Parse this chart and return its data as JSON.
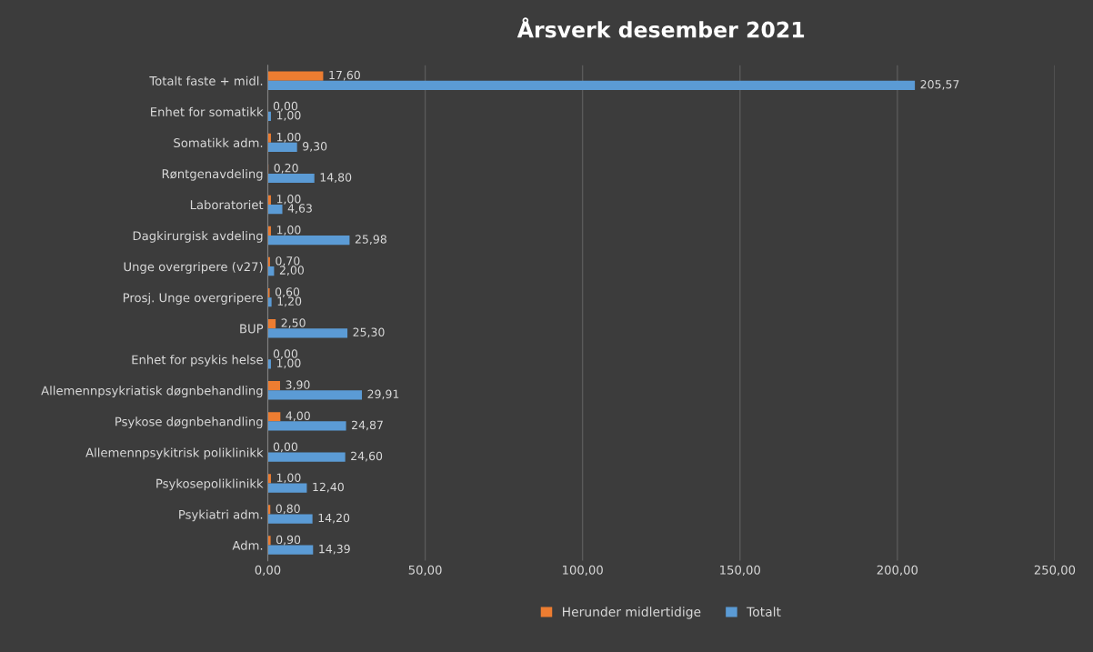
{
  "chart_data": {
    "type": "bar",
    "orientation": "horizontal",
    "title": "Årsverk desember 2021",
    "categories": [
      "Totalt faste + midl.",
      "Enhet for somatikk",
      "Somatikk adm.",
      "Røntgenavdeling",
      "Laboratoriet",
      "Dagkirurgisk avdeling",
      "Unge overgripere (v27)",
      "Prosj. Unge overgripere",
      "BUP",
      "Enhet for psykis helse",
      "Allemennpsykriatisk døgnbehandling",
      "Psykose døgnbehandling",
      "Allemennpsykitrisk poliklinikk",
      "Psykosepoliklinikk",
      "Psykiatri adm.",
      "Adm."
    ],
    "series": [
      {
        "name": "Herunder midlertidige",
        "color": "#ed7d31",
        "values": [
          17.6,
          0.0,
          1.0,
          0.2,
          1.0,
          1.0,
          0.7,
          0.6,
          2.5,
          0.0,
          3.9,
          4.0,
          0.0,
          1.0,
          0.8,
          0.9
        ],
        "value_labels": [
          "17,60",
          "0,00",
          "1,00",
          "0,20",
          "1,00",
          "1,00",
          "0,70",
          "0,60",
          "2,50",
          "0,00",
          "3,90",
          "4,00",
          "0,00",
          "1,00",
          "0,80",
          "0,90"
        ]
      },
      {
        "name": "Totalt",
        "color": "#5b9bd5",
        "values": [
          205.57,
          1.0,
          9.3,
          14.8,
          4.63,
          25.98,
          2.0,
          1.2,
          25.3,
          1.0,
          29.91,
          24.87,
          24.6,
          12.4,
          14.2,
          14.39
        ],
        "value_labels": [
          "205,57",
          "1,00",
          "9,30",
          "14,80",
          "4,63",
          "25,98",
          "2,00",
          "1,20",
          "25,30",
          "1,00",
          "29,91",
          "24,87",
          "24,60",
          "12,40",
          "14,20",
          "14,39"
        ]
      }
    ],
    "xlim": [
      0,
      250
    ],
    "xticks": [
      {
        "value": 0,
        "label": "0,00"
      },
      {
        "value": 50,
        "label": "50,00"
      },
      {
        "value": 100,
        "label": "100,00"
      },
      {
        "value": 150,
        "label": "150,00"
      },
      {
        "value": 200,
        "label": "200,00"
      },
      {
        "value": 250,
        "label": "250,00"
      }
    ],
    "grid": "x",
    "legend": "bottom"
  }
}
